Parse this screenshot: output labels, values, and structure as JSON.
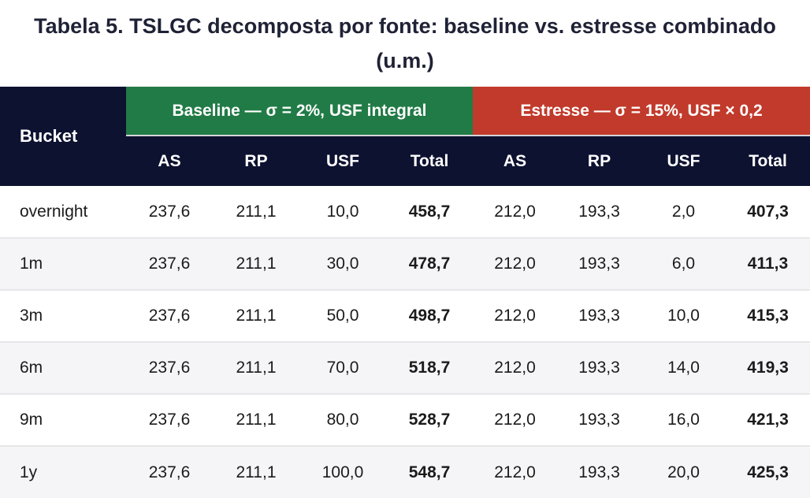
{
  "title": {
    "line1": "Tabela 5. TSLGC decomposta por fonte: baseline vs. estresse combinado",
    "line2": "(u.m.)"
  },
  "colors": {
    "header_navy": "#0d1230",
    "baseline_green": "#217b46",
    "estresse_red": "#c13a2b",
    "stripe_gray": "#f5f5f7",
    "row_divider": "#e7e7ea",
    "banner_divider": "#d4d4d8",
    "title_text": "#1f2235"
  },
  "table": {
    "bucket_header": "Bucket",
    "groups": [
      {
        "label": "Baseline — σ = 2%, USF integral",
        "color": "#217b46"
      },
      {
        "label": "Estresse — σ = 15%, USF × 0,2",
        "color": "#c13a2b"
      }
    ],
    "sub_headers": [
      "AS",
      "RP",
      "USF",
      "Total",
      "AS",
      "RP",
      "USF",
      "Total"
    ],
    "rows": [
      {
        "bucket": "overnight",
        "cells": [
          "237,6",
          "211,1",
          "10,0",
          "458,7",
          "212,0",
          "193,3",
          "2,0",
          "407,3"
        ]
      },
      {
        "bucket": "1m",
        "cells": [
          "237,6",
          "211,1",
          "30,0",
          "478,7",
          "212,0",
          "193,3",
          "6,0",
          "411,3"
        ]
      },
      {
        "bucket": "3m",
        "cells": [
          "237,6",
          "211,1",
          "50,0",
          "498,7",
          "212,0",
          "193,3",
          "10,0",
          "415,3"
        ]
      },
      {
        "bucket": "6m",
        "cells": [
          "237,6",
          "211,1",
          "70,0",
          "518,7",
          "212,0",
          "193,3",
          "14,0",
          "419,3"
        ]
      },
      {
        "bucket": "9m",
        "cells": [
          "237,6",
          "211,1",
          "80,0",
          "528,7",
          "212,0",
          "193,3",
          "16,0",
          "421,3"
        ]
      },
      {
        "bucket": "1y",
        "cells": [
          "237,6",
          "211,1",
          "100,0",
          "548,7",
          "212,0",
          "193,3",
          "20,0",
          "425,3"
        ]
      }
    ]
  },
  "chart_data": {
    "type": "table",
    "title": "Tabela 5. TSLGC decomposta por fonte: baseline vs. estresse combinado (u.m.)",
    "column_groups": [
      {
        "label": "Baseline — σ = 2%, USF integral",
        "columns": [
          "AS",
          "RP",
          "USF",
          "Total"
        ]
      },
      {
        "label": "Estresse — σ = 15%, USF × 0,2",
        "columns": [
          "AS",
          "RP",
          "USF",
          "Total"
        ]
      }
    ],
    "columns": [
      "Bucket",
      "Baseline AS",
      "Baseline RP",
      "Baseline USF",
      "Baseline Total",
      "Estresse AS",
      "Estresse RP",
      "Estresse USF",
      "Estresse Total"
    ],
    "rows": [
      [
        "overnight",
        237.6,
        211.1,
        10.0,
        458.7,
        212.0,
        193.3,
        2.0,
        407.3
      ],
      [
        "1m",
        237.6,
        211.1,
        30.0,
        478.7,
        212.0,
        193.3,
        6.0,
        411.3
      ],
      [
        "3m",
        237.6,
        211.1,
        50.0,
        498.7,
        212.0,
        193.3,
        10.0,
        415.3
      ],
      [
        "6m",
        237.6,
        211.1,
        70.0,
        518.7,
        212.0,
        193.3,
        14.0,
        419.3
      ],
      [
        "9m",
        237.6,
        211.1,
        80.0,
        528.7,
        212.0,
        193.3,
        16.0,
        421.3
      ],
      [
        "1y",
        237.6,
        211.1,
        100.0,
        548.7,
        212.0,
        193.3,
        20.0,
        425.3
      ]
    ]
  }
}
